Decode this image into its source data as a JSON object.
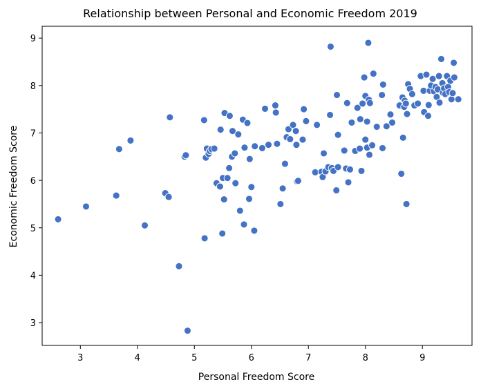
{
  "colors": {
    "marker": "#4472c4"
  },
  "chart_data": {
    "type": "scatter",
    "title": "Relationship between Personal and Economic Freedom 2019",
    "xlabel": "Personal Freedom Score",
    "ylabel": "Economic Freedom Score",
    "xlim": [
      2.33,
      9.87
    ],
    "ylim": [
      2.52,
      9.25
    ],
    "xticks": [
      3,
      4,
      5,
      6,
      7,
      8,
      9
    ],
    "yticks": [
      3,
      4,
      5,
      6,
      7,
      8,
      9
    ],
    "grid": false,
    "legend": "none",
    "points": [
      [
        2.61,
        5.18
      ],
      [
        3.1,
        5.45
      ],
      [
        3.63,
        5.68
      ],
      [
        3.68,
        6.66
      ],
      [
        3.88,
        6.84
      ],
      [
        4.13,
        5.05
      ],
      [
        4.49,
        5.73
      ],
      [
        4.55,
        5.65
      ],
      [
        4.57,
        7.33
      ],
      [
        4.73,
        4.19
      ],
      [
        4.83,
        6.5
      ],
      [
        4.85,
        6.53
      ],
      [
        4.88,
        2.83
      ],
      [
        5.17,
        7.27
      ],
      [
        5.18,
        4.78
      ],
      [
        5.2,
        6.48
      ],
      [
        5.22,
        6.67
      ],
      [
        5.25,
        6.56
      ],
      [
        5.27,
        6.62
      ],
      [
        5.3,
        6.66
      ],
      [
        5.35,
        6.67
      ],
      [
        5.39,
        5.94
      ],
      [
        5.45,
        5.87
      ],
      [
        5.46,
        7.07
      ],
      [
        5.49,
        4.88
      ],
      [
        5.5,
        6.05
      ],
      [
        5.52,
        5.6
      ],
      [
        5.53,
        7.42
      ],
      [
        5.58,
        6.05
      ],
      [
        5.61,
        6.26
      ],
      [
        5.62,
        7.36
      ],
      [
        5.66,
        6.5
      ],
      [
        5.67,
        7.04
      ],
      [
        5.71,
        6.57
      ],
      [
        5.72,
        5.94
      ],
      [
        5.77,
        6.97
      ],
      [
        5.8,
        5.36
      ],
      [
        5.85,
        7.28
      ],
      [
        5.87,
        5.07
      ],
      [
        5.88,
        6.69
      ],
      [
        5.93,
        7.21
      ],
      [
        5.96,
        5.61
      ],
      [
        5.97,
        6.45
      ],
      [
        6.0,
        5.86
      ],
      [
        6.05,
        4.94
      ],
      [
        6.06,
        6.72
      ],
      [
        6.19,
        6.68
      ],
      [
        6.24,
        7.51
      ],
      [
        6.3,
        6.75
      ],
      [
        6.42,
        7.58
      ],
      [
        6.43,
        7.43
      ],
      [
        6.45,
        6.77
      ],
      [
        6.51,
        5.5
      ],
      [
        6.55,
        5.83
      ],
      [
        6.59,
        6.35
      ],
      [
        6.62,
        6.91
      ],
      [
        6.65,
        7.08
      ],
      [
        6.68,
        6.87
      ],
      [
        6.73,
        7.17
      ],
      [
        6.78,
        7.04
      ],
      [
        6.79,
        6.75
      ],
      [
        6.8,
        5.98
      ],
      [
        6.82,
        5.99
      ],
      [
        6.9,
        6.86
      ],
      [
        6.92,
        7.5
      ],
      [
        6.96,
        7.25
      ],
      [
        7.12,
        6.17
      ],
      [
        7.15,
        7.17
      ],
      [
        7.23,
        6.18
      ],
      [
        7.25,
        6.07
      ],
      [
        7.27,
        6.57
      ],
      [
        7.3,
        6.19
      ],
      [
        7.35,
        6.28
      ],
      [
        7.38,
        7.38
      ],
      [
        7.39,
        8.82
      ],
      [
        7.41,
        6.26
      ],
      [
        7.44,
        6.2
      ],
      [
        7.49,
        5.79
      ],
      [
        7.5,
        7.8
      ],
      [
        7.52,
        6.96
      ],
      [
        7.52,
        6.28
      ],
      [
        7.63,
        6.63
      ],
      [
        7.66,
        6.25
      ],
      [
        7.68,
        7.63
      ],
      [
        7.7,
        5.96
      ],
      [
        7.73,
        6.23
      ],
      [
        7.76,
        7.22
      ],
      [
        7.82,
        6.62
      ],
      [
        7.86,
        7.53
      ],
      [
        7.9,
        6.67
      ],
      [
        7.91,
        7.29
      ],
      [
        7.93,
        6.2
      ],
      [
        7.95,
        7.62
      ],
      [
        7.98,
        8.17
      ],
      [
        8.0,
        7.78
      ],
      [
        8.0,
        6.86
      ],
      [
        8.03,
        6.69
      ],
      [
        8.03,
        7.24
      ],
      [
        8.05,
        8.9
      ],
      [
        8.06,
        7.7
      ],
      [
        8.07,
        6.54
      ],
      [
        8.08,
        7.63
      ],
      [
        8.12,
        6.74
      ],
      [
        8.14,
        8.25
      ],
      [
        8.2,
        7.13
      ],
      [
        8.29,
        7.8
      ],
      [
        8.3,
        6.68
      ],
      [
        8.31,
        8.02
      ],
      [
        8.37,
        7.14
      ],
      [
        8.44,
        7.39
      ],
      [
        8.47,
        7.22
      ],
      [
        8.6,
        7.58
      ],
      [
        8.63,
        6.14
      ],
      [
        8.65,
        7.75
      ],
      [
        8.66,
        6.9
      ],
      [
        8.68,
        7.55
      ],
      [
        8.69,
        7.68
      ],
      [
        8.71,
        7.62
      ],
      [
        8.72,
        5.5
      ],
      [
        8.73,
        7.4
      ],
      [
        8.75,
        8.03
      ],
      [
        8.78,
        7.93
      ],
      [
        8.82,
        7.82
      ],
      [
        8.86,
        7.58
      ],
      [
        8.92,
        7.62
      ],
      [
        8.97,
        8.2
      ],
      [
        9.02,
        7.89
      ],
      [
        9.03,
        7.44
      ],
      [
        9.07,
        8.23
      ],
      [
        9.1,
        7.36
      ],
      [
        9.11,
        7.59
      ],
      [
        9.13,
        7.89
      ],
      [
        9.15,
        8.0
      ],
      [
        9.18,
        8.14
      ],
      [
        9.2,
        7.88
      ],
      [
        9.23,
        7.97
      ],
      [
        9.25,
        7.76
      ],
      [
        9.27,
        7.92
      ],
      [
        9.29,
        8.2
      ],
      [
        9.3,
        7.64
      ],
      [
        9.33,
        8.56
      ],
      [
        9.35,
        8.05
      ],
      [
        9.36,
        7.85
      ],
      [
        9.38,
        7.94
      ],
      [
        9.4,
        7.82
      ],
      [
        9.43,
        8.2
      ],
      [
        9.45,
        7.97
      ],
      [
        9.47,
        7.86
      ],
      [
        9.49,
        8.1
      ],
      [
        9.51,
        7.71
      ],
      [
        9.53,
        7.84
      ],
      [
        9.55,
        8.48
      ],
      [
        9.56,
        8.17
      ],
      [
        9.63,
        7.71
      ]
    ]
  }
}
